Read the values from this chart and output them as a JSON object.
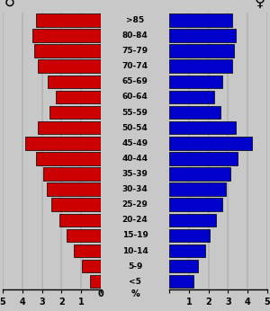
{
  "age_groups": [
    ">85",
    "80-84",
    "75-79",
    "70-74",
    "65-69",
    "60-64",
    "55-59",
    "50-54",
    "45-49",
    "40-44",
    "35-39",
    "30-34",
    "25-29",
    "20-24",
    "15-19",
    "10-14",
    "5-9",
    "<5"
  ],
  "male": [
    0.55,
    0.95,
    1.35,
    1.75,
    2.1,
    2.5,
    2.75,
    2.95,
    3.3,
    3.85,
    3.2,
    2.6,
    2.3,
    2.7,
    3.2,
    3.4,
    3.5,
    3.3
  ],
  "female": [
    1.25,
    1.45,
    1.85,
    2.05,
    2.4,
    2.7,
    2.9,
    3.1,
    3.5,
    4.2,
    3.4,
    2.6,
    2.3,
    2.7,
    3.2,
    3.3,
    3.4,
    3.2
  ],
  "male_color": "#cc0000",
  "female_color": "#0000cc",
  "bar_edge_color": "#000000",
  "background_color": "#c8c8c8",
  "male_symbol": "♂",
  "female_symbol": "♀",
  "xlabel": "%",
  "xlim": 5.0,
  "xticks": [
    0,
    1,
    2,
    3,
    4,
    5
  ]
}
